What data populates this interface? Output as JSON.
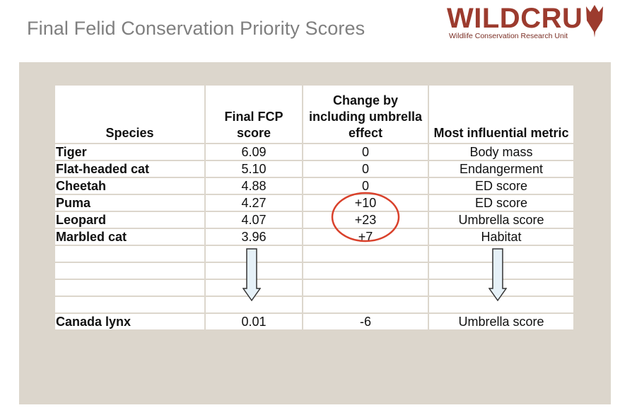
{
  "slide": {
    "title": "Final Felid Conservation Priority Scores"
  },
  "logo": {
    "wordmark": "WILDCRU",
    "subtitle": "Wildlife Conservation Research Unit",
    "icon": "leaf-icon"
  },
  "colors": {
    "brand": "#9c3b2e",
    "panel": "#dcd6cc",
    "circle": "#d9412b",
    "arrow": "#e6f1f8"
  },
  "table": {
    "headers": {
      "species": "Species",
      "fcp": "Final FCP score",
      "change": "Change by including umbrella effect",
      "metric": "Most influential metric"
    },
    "rows": [
      {
        "species": "Tiger",
        "fcp": "6.09",
        "change": "0",
        "metric": "Body mass"
      },
      {
        "species": "Flat-headed cat",
        "fcp": "5.10",
        "change": "0",
        "metric": "Endangerment"
      },
      {
        "species": "Cheetah",
        "fcp": "4.88",
        "change": "0",
        "metric": "ED score"
      },
      {
        "species": "Puma",
        "fcp": "4.27",
        "change": "+10",
        "metric": "ED score"
      },
      {
        "species": "Leopard",
        "fcp": "4.07",
        "change": "+23",
        "metric": "Umbrella score"
      },
      {
        "species": "Marbled cat",
        "fcp": "3.96",
        "change": "+7",
        "metric": "Habitat"
      }
    ],
    "last_row": {
      "species": "Canada lynx",
      "fcp": "0.01",
      "change": "-6",
      "metric": "Umbrella score"
    }
  }
}
